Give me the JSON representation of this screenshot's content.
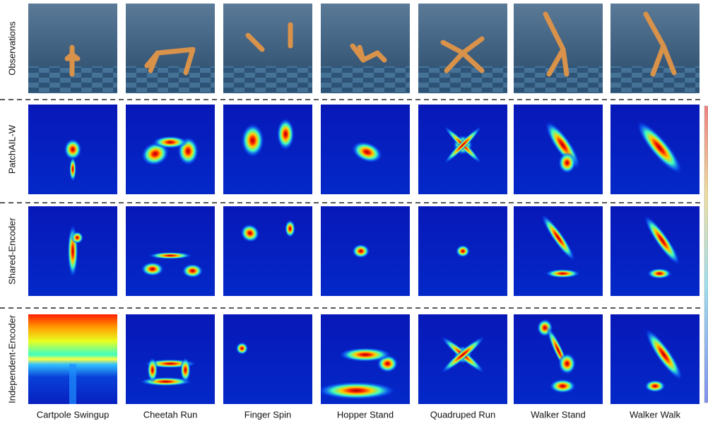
{
  "row_labels": [
    "Observations",
    "PatchAIL-W",
    "Shared-Encoder",
    "Independent-Encoder"
  ],
  "column_labels": [
    "Cartpole Swingup",
    "Cheetah Run",
    "Finger Spin",
    "Hopper Stand",
    "Quadruped Run",
    "Walker Stand",
    "Walker Walk"
  ]
}
